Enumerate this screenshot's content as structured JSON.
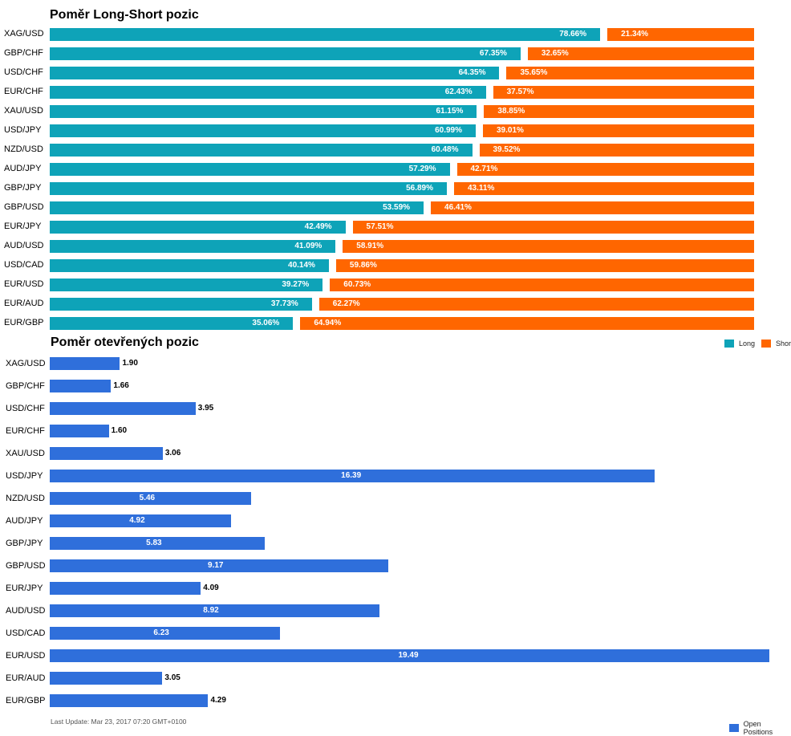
{
  "chart_data": [
    {
      "type": "bar",
      "stacked": true,
      "orientation": "horizontal",
      "title": "Poměr Long-Short pozic",
      "categories": [
        "XAG/USD",
        "GBP/CHF",
        "USD/CHF",
        "EUR/CHF",
        "XAU/USD",
        "USD/JPY",
        "NZD/USD",
        "AUD/JPY",
        "GBP/JPY",
        "GBP/USD",
        "EUR/JPY",
        "AUD/USD",
        "USD/CAD",
        "EUR/USD",
        "EUR/AUD",
        "EUR/GBP"
      ],
      "series": [
        {
          "name": "Long",
          "color": "#0ea3b8",
          "values": [
            78.66,
            67.35,
            64.35,
            62.43,
            61.15,
            60.99,
            60.48,
            57.29,
            56.89,
            53.59,
            42.49,
            41.09,
            40.14,
            39.27,
            37.73,
            35.06
          ]
        },
        {
          "name": "Short",
          "color": "#ff6600",
          "values": [
            21.34,
            32.65,
            35.65,
            37.57,
            38.85,
            39.01,
            39.52,
            42.71,
            43.11,
            46.41,
            57.51,
            58.91,
            59.86,
            60.73,
            62.27,
            64.94
          ]
        }
      ],
      "value_labels": {
        "long": [
          "78.66%",
          "67.35%",
          "64.35%",
          "62.43%",
          "61.15%",
          "60.99%",
          "60.48%",
          "57.29%",
          "56.89%",
          "53.59%",
          "42.49%",
          "41.09%",
          "40.14%",
          "39.27%",
          "37.73%",
          "35.06%"
        ],
        "short": [
          "21.34%",
          "32.65%",
          "35.65%",
          "37.57%",
          "38.85%",
          "39.01%",
          "39.52%",
          "42.71%",
          "43.11%",
          "46.41%",
          "57.51%",
          "58.91%",
          "59.86%",
          "60.73%",
          "62.27%",
          "64.94%"
        ]
      },
      "legend": "bottom-right",
      "grid": false
    },
    {
      "type": "bar",
      "orientation": "horizontal",
      "title": "Poměr otevřených pozic",
      "categories": [
        "XAG/USD",
        "GBP/CHF",
        "USD/CHF",
        "EUR/CHF",
        "XAU/USD",
        "USD/JPY",
        "NZD/USD",
        "AUD/JPY",
        "GBP/JPY",
        "GBP/USD",
        "EUR/JPY",
        "AUD/USD",
        "USD/CAD",
        "EUR/USD",
        "EUR/AUD",
        "EUR/GBP"
      ],
      "series": [
        {
          "name": "Open Positions",
          "color": "#2f6fdb",
          "values": [
            1.9,
            1.66,
            3.95,
            1.6,
            3.06,
            16.39,
            5.46,
            4.92,
            5.83,
            9.17,
            4.09,
            8.92,
            6.23,
            19.49,
            3.05,
            4.29
          ]
        }
      ],
      "value_labels": [
        "1.90",
        "1.66",
        "3.95",
        "1.60",
        "3.06",
        "16.39",
        "5.46",
        "4.92",
        "5.83",
        "9.17",
        "4.09",
        "8.92",
        "6.23",
        "19.49",
        "3.05",
        "4.29"
      ],
      "legend": "bottom-right",
      "grid": false
    }
  ],
  "footer": "Last Update: Mar 23, 2017 07:20 GMT+0100"
}
